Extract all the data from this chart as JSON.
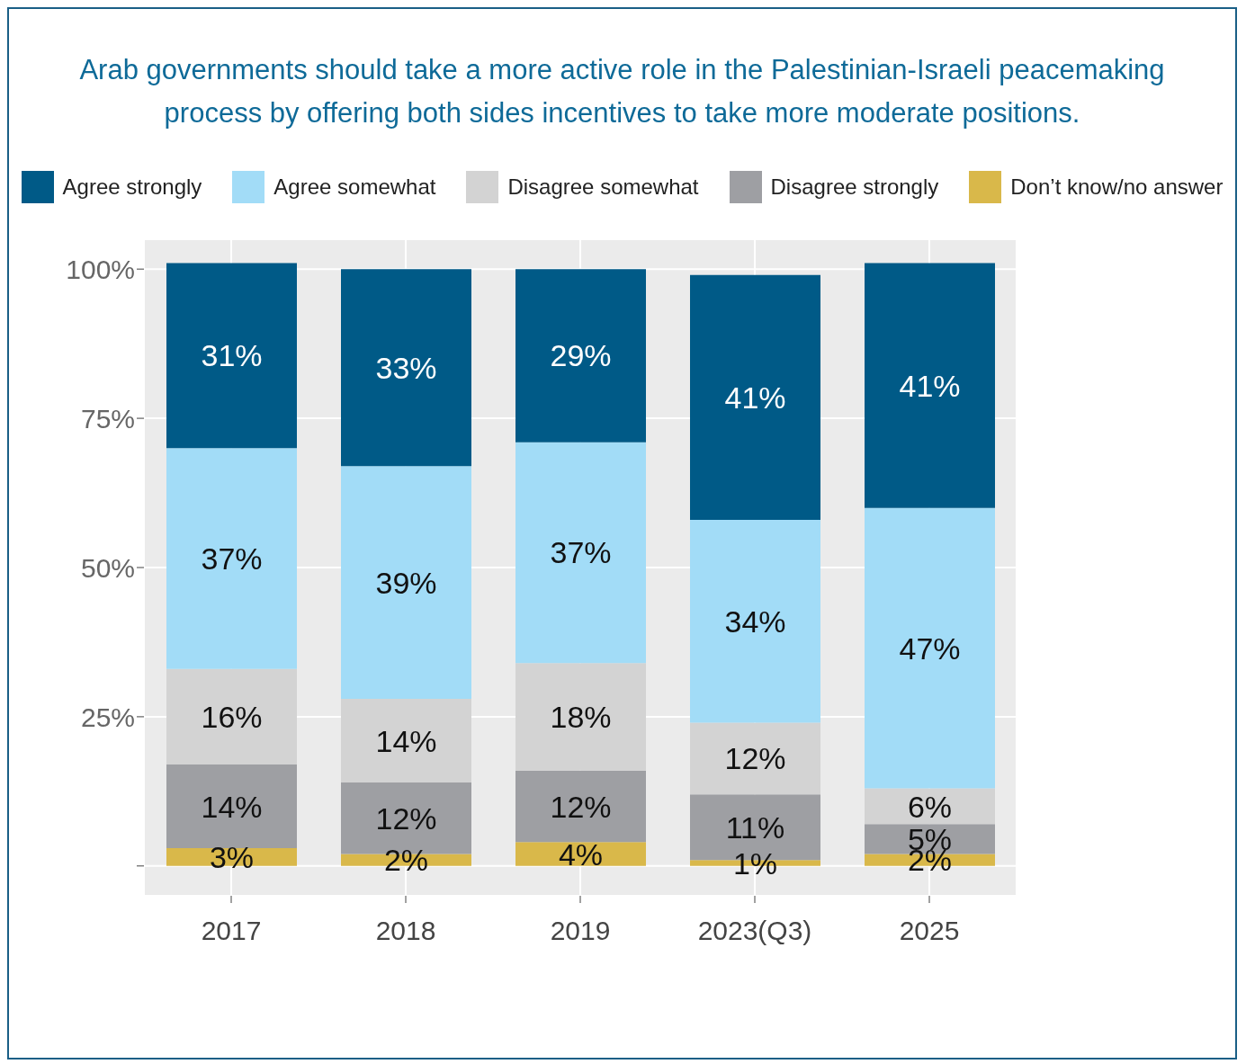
{
  "chart_data": {
    "type": "bar",
    "title": "Arab governments should take a more active role in the Palestinian-Israeli peacemaking process by offering both sides incentives to take more moderate positions.",
    "categories": [
      "2017",
      "2018",
      "2019",
      "2023(Q3)",
      "2025"
    ],
    "stacked": true,
    "series": [
      {
        "name": "Don’t know/no answer",
        "color": "#d9b84a",
        "values": [
          3,
          2,
          4,
          1,
          2
        ],
        "value_labels": [
          "3%",
          "2%",
          "4%",
          "1%",
          "2%"
        ]
      },
      {
        "name": "Disagree strongly",
        "color": "#9e9fa3",
        "values": [
          14,
          12,
          12,
          11,
          5
        ],
        "value_labels": [
          "14%",
          "12%",
          "12%",
          "11%",
          "5%"
        ]
      },
      {
        "name": "Disagree somewhat",
        "color": "#d3d3d3",
        "values": [
          16,
          14,
          18,
          12,
          6
        ],
        "value_labels": [
          "16%",
          "14%",
          "18%",
          "12%",
          "6%"
        ]
      },
      {
        "name": "Agree somewhat",
        "color": "#a2dcf7",
        "values": [
          37,
          39,
          37,
          34,
          47
        ],
        "value_labels": [
          "37%",
          "39%",
          "37%",
          "34%",
          "47%"
        ]
      },
      {
        "name": "Agree strongly",
        "color": "#005a87",
        "values": [
          31,
          33,
          29,
          41,
          41
        ],
        "value_labels": [
          "31%",
          "33%",
          "29%",
          "41%",
          "41%"
        ]
      }
    ],
    "ylim": [
      -5,
      105
    ],
    "yticks": [
      {
        "value": 0,
        "label": null
      },
      {
        "value": 25,
        "label": "25%"
      },
      {
        "value": 50,
        "label": "50%"
      },
      {
        "value": 75,
        "label": "75%"
      },
      {
        "value": 100,
        "label": "100%"
      }
    ],
    "grid": true,
    "legend": "top"
  }
}
